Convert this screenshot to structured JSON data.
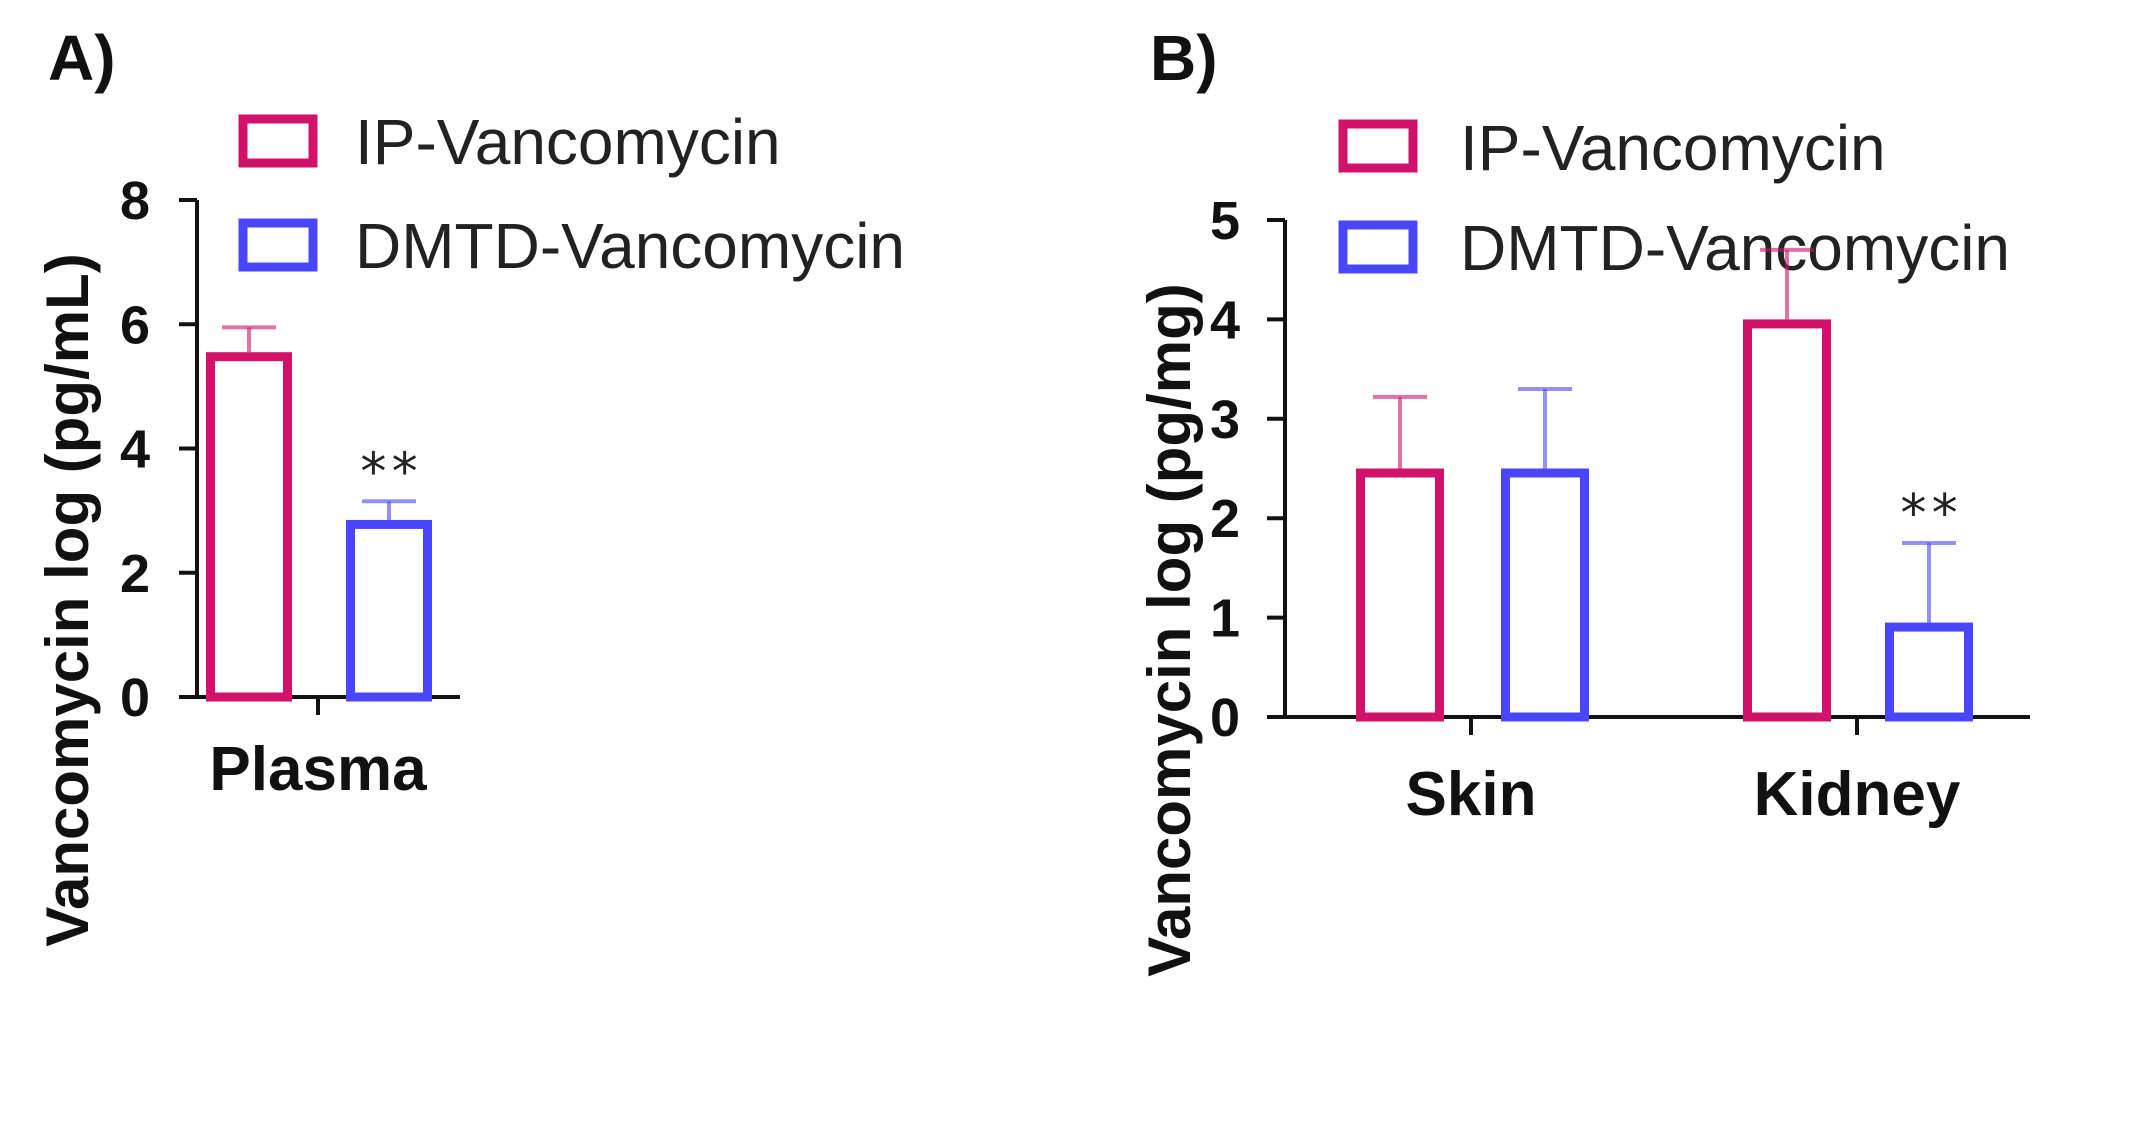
{
  "chart_data": [
    {
      "type": "bar",
      "panel_label": "A)",
      "title": "",
      "xlabel": "",
      "ylabel": "Vancomycin log (pg/mL)",
      "ylim": [
        0,
        8
      ],
      "yticks": [
        0,
        2,
        4,
        6,
        8
      ],
      "categories": [
        "Plasma"
      ],
      "series": [
        {
          "name": "IP-Vancomycin",
          "color": "#d2126a",
          "values": [
            5.55
          ],
          "errors": [
            0.4
          ],
          "significance": [
            ""
          ]
        },
        {
          "name": "DMTD-Vancomycin",
          "color": "#4a46ff",
          "values": [
            2.85
          ],
          "errors": [
            0.3
          ],
          "significance": [
            "**"
          ]
        }
      ],
      "legend": "top-right"
    },
    {
      "type": "bar",
      "panel_label": "B)",
      "title": "",
      "xlabel": "",
      "ylabel": "Vancomycin log (pg/mg)",
      "ylim": [
        0,
        5
      ],
      "yticks": [
        0,
        1,
        2,
        3,
        4,
        5
      ],
      "categories": [
        "Skin",
        "Kidney"
      ],
      "series": [
        {
          "name": "IP-Vancomycin",
          "color": "#d2126a",
          "values": [
            2.5,
            4.0
          ],
          "errors": [
            0.72,
            0.7
          ],
          "significance": [
            "",
            ""
          ]
        },
        {
          "name": "DMTD-Vancomycin",
          "color": "#4a46ff",
          "values": [
            2.5,
            0.95
          ],
          "errors": [
            0.8,
            0.8
          ],
          "significance": [
            "",
            "**"
          ]
        }
      ],
      "legend": "top-right"
    }
  ]
}
